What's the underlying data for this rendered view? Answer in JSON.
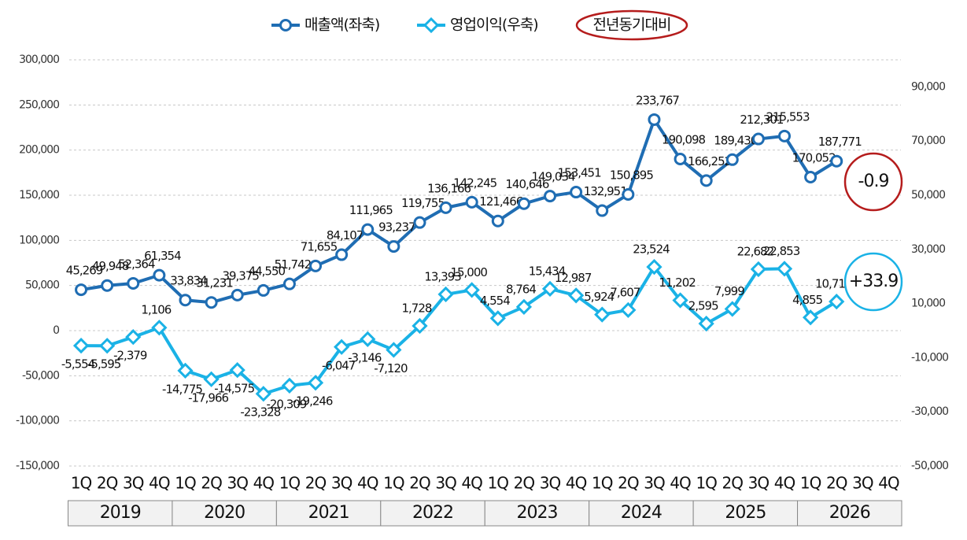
{
  "chart_data": {
    "type": "line",
    "categories": [
      "1Q",
      "2Q",
      "3Q",
      "4Q",
      "1Q",
      "2Q",
      "3Q",
      "4Q",
      "1Q",
      "2Q",
      "3Q",
      "4Q",
      "1Q",
      "2Q",
      "3Q",
      "4Q",
      "1Q",
      "2Q",
      "3Q",
      "4Q",
      "1Q",
      "2Q",
      "3Q",
      "4Q",
      "1Q",
      "2Q",
      "3Q",
      "4Q",
      "1Q",
      "2Q",
      "3Q",
      "4Q"
    ],
    "years": [
      "2019",
      "2020",
      "2021",
      "2022",
      "2023",
      "2024",
      "2025",
      "2026"
    ],
    "series": [
      {
        "name": "매출액(좌축)",
        "color": "#1f6db3",
        "marker": "circle",
        "axis": "y",
        "values": [
          45269,
          49948,
          52364,
          61354,
          33834,
          31231,
          39375,
          44550,
          51742,
          71655,
          84107,
          111965,
          93237,
          119755,
          136166,
          142245,
          121466,
          140646,
          149034,
          153451,
          132951,
          150895,
          233767,
          190098,
          166252,
          189430,
          212301,
          215553,
          170052,
          187771,
          null,
          null
        ],
        "value_labels": [
          "45,269",
          "49,948",
          "52,364",
          "61,354",
          "33,834",
          "31,231",
          "39,375",
          "44,550",
          "51,742",
          "71,655",
          "84,107",
          "111,965",
          "93,237",
          "119,755",
          "136,166",
          "142,245",
          "121,466",
          "140,646",
          "149,034",
          "153,451",
          "132,951",
          "150,895",
          "233,767",
          "190,098",
          "166,252",
          "189,430",
          "212,301",
          "215,553",
          "170,052",
          "187,771",
          null,
          null
        ]
      },
      {
        "name": "영업이익(우축)",
        "color": "#1ab2e6",
        "marker": "diamond",
        "axis": "y2",
        "values": [
          -5554,
          -5595,
          -2379,
          1106,
          -14775,
          -17966,
          -14575,
          -23328,
          -20309,
          -19246,
          -6047,
          -3146,
          -7120,
          1728,
          13393,
          15000,
          4554,
          8764,
          15434,
          12987,
          5924,
          7607,
          23524,
          11202,
          2595,
          7999,
          22682,
          22853,
          4855,
          10714,
          null,
          null
        ],
        "value_labels": [
          "-5,554",
          "-5,595",
          "-2,379",
          "1,106",
          "-14,775",
          "-17,966",
          "-14,575",
          "-23,328",
          "-20,309",
          "-19,246",
          "-6,047",
          "-3,146",
          "-7,120",
          "1,728",
          "13,393",
          "15,000",
          "4,554",
          "8,764",
          "15,434",
          "12,987",
          "5,924",
          "7,607",
          "23,524",
          "11,202",
          "2,595",
          "7,999",
          "22,682",
          "22,853",
          "4,855",
          "10,714",
          null,
          null
        ]
      }
    ],
    "legend_note": "전년동기대비",
    "legend_note_color": "#b51c1c",
    "annotations": [
      {
        "text": "-0.9",
        "color": "#b51c1c",
        "series": 0
      },
      {
        "text": "+33.9",
        "color": "#1ab2e6",
        "series": 1
      }
    ],
    "ylim": [
      -150000,
      300000
    ],
    "yticks": [
      {
        "value": -150000,
        "label": "-150,000"
      },
      {
        "value": -100000,
        "label": "-100,000"
      },
      {
        "value": -50000,
        "label": "-50,000"
      },
      0,
      {
        "value": 50000,
        "label": "50,000"
      },
      {
        "value": 100000,
        "label": "100,000"
      },
      {
        "value": 150000,
        "label": "150,000"
      },
      {
        "value": 200000,
        "label": "200,000"
      },
      {
        "value": 250000,
        "label": "250,000"
      },
      {
        "value": 300000,
        "label": "300,000"
      }
    ],
    "y2lim": [
      -50000,
      100000
    ],
    "y2ticks": [
      {
        "value": -50000,
        "label": "-50,000"
      },
      {
        "value": -30000,
        "label": "-30,000"
      },
      {
        "value": -10000,
        "label": "-10,000"
      },
      {
        "value": 10000,
        "label": "10,000"
      },
      {
        "value": 30000,
        "label": "30,000"
      },
      {
        "value": 50000,
        "label": "50,000"
      },
      {
        "value": 70000,
        "label": "70,000"
      },
      {
        "value": 90000,
        "label": "90,000"
      }
    ],
    "grid": true
  }
}
